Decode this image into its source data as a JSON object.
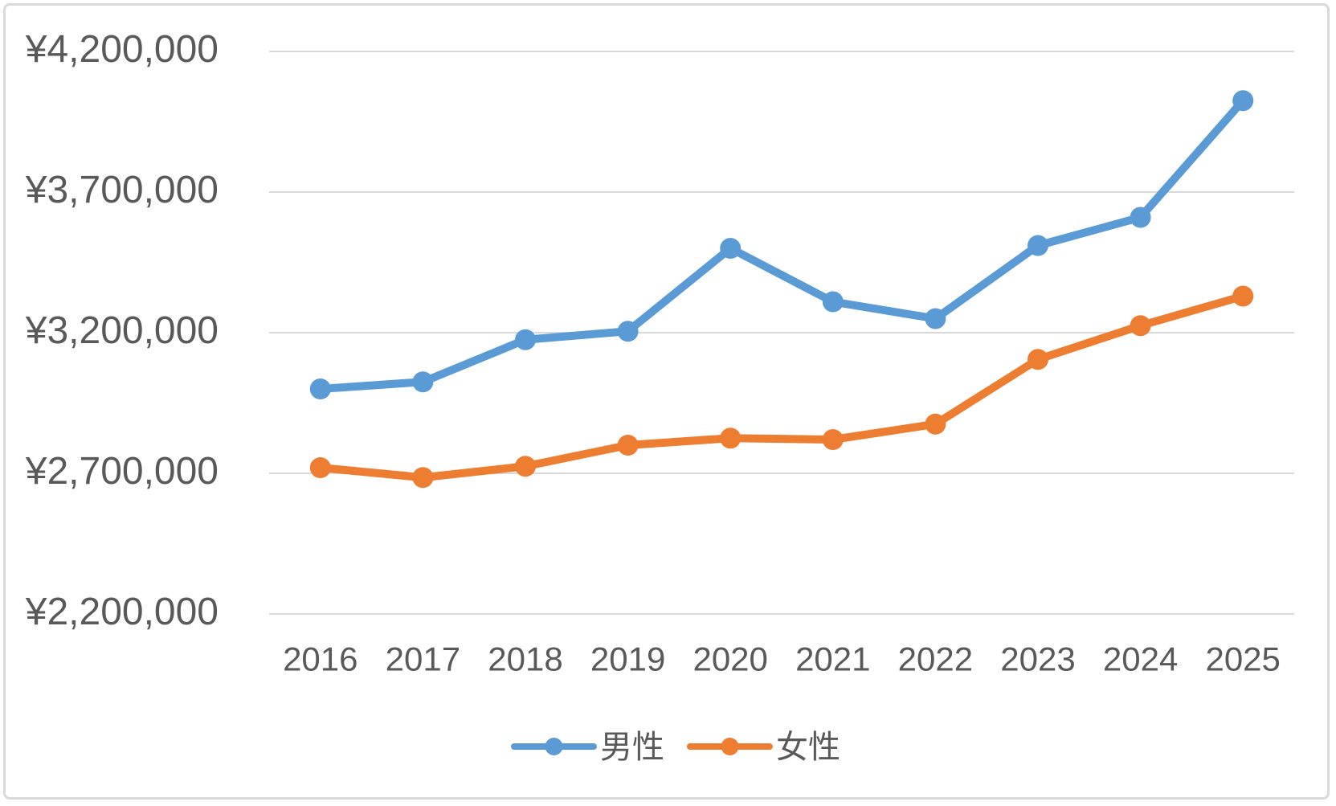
{
  "chart_data": {
    "type": "line",
    "categories": [
      "2016",
      "2017",
      "2018",
      "2019",
      "2020",
      "2021",
      "2022",
      "2023",
      "2024",
      "2025"
    ],
    "series": [
      {
        "name": "男性",
        "color": "#5B9BD5",
        "values": [
          3000000,
          3025000,
          3175000,
          3205000,
          3500000,
          3310000,
          3250000,
          3510000,
          3610000,
          4025000
        ]
      },
      {
        "name": "女性",
        "color": "#ED7D31",
        "values": [
          2720000,
          2685000,
          2725000,
          2800000,
          2825000,
          2820000,
          2875000,
          3105000,
          3225000,
          3330000
        ]
      }
    ],
    "title": "",
    "xlabel": "",
    "ylabel": "",
    "ylim": [
      2200000,
      4200000
    ],
    "ytick_step": 500000,
    "ytick_labels": [
      "¥2,200,000",
      "¥2,700,000",
      "¥3,200,000",
      "¥3,700,000",
      "¥4,200,000"
    ],
    "grid": true,
    "legend_position": "bottom"
  },
  "colors": {
    "grid": "#D9D9D9",
    "border": "#D9D9D9",
    "labels": "#595959",
    "background": "#FFFFFF"
  }
}
